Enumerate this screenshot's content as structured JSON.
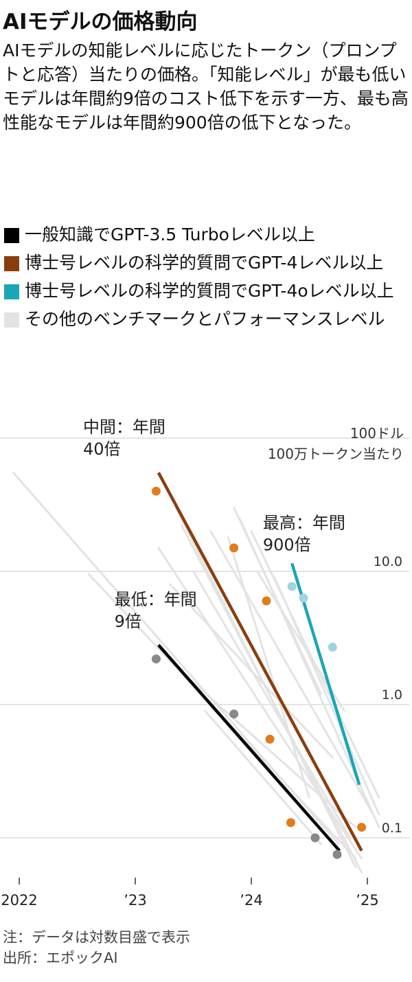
{
  "title": "AIモデルの価格動向",
  "subtitle": "AIモデルの知能レベルに応じたトークン（プロンプトと応答）当たりの価格。「知能レベル」が最も低いモデルは年間約9倍のコスト低下を示す一方、最も高性能なモデルは年間約900倍の低下となった。",
  "legend": [
    {
      "label": "一般知識でGPT-3.5 Turboレベル以上",
      "color": "#000000"
    },
    {
      "label": "博士号レベルの科学的質問でGPT-4レベル以上",
      "color": "#8a3e0e"
    },
    {
      "label": "博士号レベルの科学的質問でGPT-4oレベル以上",
      "color": "#1aa6b7"
    },
    {
      "label": "その他のベンチマークとパフォーマンスレベル",
      "color": "#e3e3e3"
    }
  ],
  "notes": {
    "note": "注：データは対数目盛で表示",
    "source": "出所：エポックAI"
  },
  "chart_data": {
    "type": "scatter",
    "y_scale": "log",
    "ylim": [
      0.05,
      200
    ],
    "xlim": [
      2021.95,
      2025.12
    ],
    "y_unit": [
      "100ドル",
      "100万トークン当たり"
    ],
    "y_ticks": [
      {
        "value": 0.1,
        "label": "0.1"
      },
      {
        "value": 1,
        "label": "1.0"
      },
      {
        "value": 10,
        "label": "10.0"
      },
      {
        "value": 100,
        "label": ""
      }
    ],
    "x_ticks": [
      {
        "value": 2022,
        "label": "2022"
      },
      {
        "value": 2023,
        "label": "’23"
      },
      {
        "value": 2024,
        "label": "’24"
      },
      {
        "value": 2025,
        "label": "’25"
      }
    ],
    "series": [
      {
        "color": "#000000",
        "points": [
          [
            2023.18,
            2.2
          ],
          [
            2023.85,
            0.85
          ],
          [
            2024.55,
            0.1
          ],
          [
            2024.74,
            0.075
          ]
        ],
        "trend": [
          [
            2023.2,
            2.8
          ],
          [
            2024.76,
            0.08
          ]
        ]
      },
      {
        "color": "#8a3e0e",
        "point_color": "#e07d1a",
        "points": [
          [
            2023.18,
            40
          ],
          [
            2023.85,
            15
          ],
          [
            2024.13,
            6
          ],
          [
            2024.16,
            0.55
          ],
          [
            2024.34,
            0.13
          ],
          [
            2024.95,
            0.12
          ]
        ],
        "trend": [
          [
            2023.2,
            55
          ],
          [
            2024.95,
            0.08
          ]
        ]
      },
      {
        "color": "#1aa6b7",
        "point_color": "#9fd3e0",
        "points": [
          [
            2024.35,
            7.7
          ],
          [
            2024.45,
            6.3
          ],
          [
            2024.7,
            2.7
          ]
        ],
        "trend": [
          [
            2024.35,
            11.5
          ],
          [
            2024.93,
            0.25
          ]
        ]
      }
    ],
    "other_trends": [
      [
        [
          2021.95,
          55
        ],
        [
          2024.75,
          0.09
        ]
      ],
      [
        [
          2022.6,
          9.5
        ],
        [
          2024.9,
          0.07
        ]
      ],
      [
        [
          2023.35,
          30
        ],
        [
          2024.9,
          0.06
        ]
      ],
      [
        [
          2023.4,
          22
        ],
        [
          2024.95,
          0.055
        ]
      ],
      [
        [
          2023.5,
          10
        ],
        [
          2024.85,
          0.1
        ]
      ],
      [
        [
          2023.65,
          20
        ],
        [
          2025.05,
          0.15
        ]
      ],
      [
        [
          2023.8,
          18
        ],
        [
          2024.5,
          0.2
        ]
      ],
      [
        [
          2023.85,
          30
        ],
        [
          2024.6,
          1.2
        ]
      ],
      [
        [
          2023.9,
          25
        ],
        [
          2025.1,
          0.12
        ]
      ],
      [
        [
          2024.0,
          20
        ],
        [
          2025.1,
          0.2
        ]
      ],
      [
        [
          2024.05,
          10
        ],
        [
          2024.8,
          0.9
        ]
      ],
      [
        [
          2023.2,
          15
        ],
        [
          2024.95,
          0.07
        ]
      ],
      [
        [
          2023.3,
          8
        ],
        [
          2024.7,
          0.4
        ]
      ],
      [
        [
          2023.6,
          0.9
        ],
        [
          2024.6,
          0.09
        ]
      ],
      [
        [
          2023.45,
          1.6
        ],
        [
          2024.9,
          0.12
        ]
      ],
      [
        [
          2024.2,
          9
        ],
        [
          2025.1,
          0.15
        ]
      ]
    ],
    "annotations": [
      {
        "lines": [
          "中間：年間",
          "40倍"
        ],
        "anchor": [
          2022.55,
          110
        ]
      },
      {
        "lines": [
          "最高：年間",
          "900倍"
        ],
        "anchor": [
          2024.1,
          21
        ]
      },
      {
        "lines": [
          "最低：年間",
          "9倍"
        ],
        "anchor": [
          2022.82,
          5.6
        ]
      }
    ]
  }
}
